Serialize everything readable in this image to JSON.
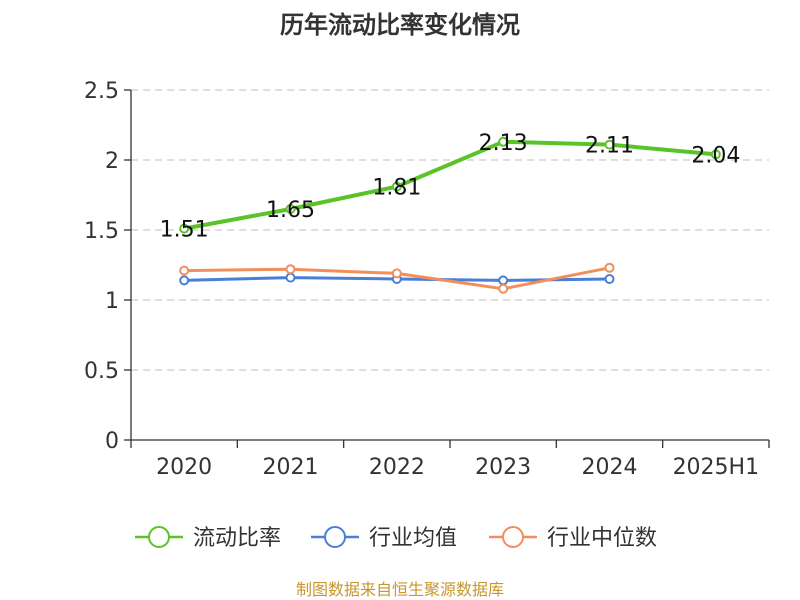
{
  "chart_data": {
    "type": "line",
    "title": "历年流动比率变化情况",
    "categories": [
      "2020",
      "2021",
      "2022",
      "2023",
      "2024",
      "2025H1"
    ],
    "ylim": [
      0,
      2.5
    ],
    "yticks": [
      "0",
      "0.5",
      "1",
      "1.5",
      "2",
      "2.5"
    ],
    "grid": true,
    "legend_position": "bottom",
    "series": [
      {
        "name": "流动比率",
        "color": "#5bc22a",
        "values": [
          1.51,
          1.65,
          1.81,
          2.13,
          2.11,
          2.04
        ],
        "labels": [
          "1.51",
          "1.65",
          "1.81",
          "2.13",
          "2.11",
          "2.04"
        ]
      },
      {
        "name": "行业均值",
        "color": "#4a7fd6",
        "values": [
          1.14,
          1.16,
          1.15,
          1.14,
          1.15,
          null
        ]
      },
      {
        "name": "行业中位数",
        "color": "#f28e5c",
        "values": [
          1.21,
          1.22,
          1.19,
          1.08,
          1.23,
          null
        ]
      }
    ]
  },
  "source": "制图数据来自恒生聚源数据库"
}
